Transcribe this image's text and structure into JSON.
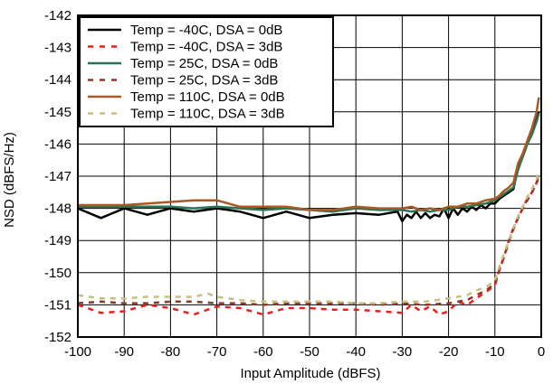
{
  "chart_data": {
    "type": "line",
    "xlabel": "Input Amplitude (dBFS)",
    "ylabel": "NSD (dBFS/Hz)",
    "xlim": [
      -100,
      0
    ],
    "ylim": [
      -152,
      -142
    ],
    "xticks": [
      "-100",
      "-90",
      "-80",
      "-70",
      "-60",
      "-50",
      "-40",
      "-30",
      "-20",
      "-10",
      "0"
    ],
    "yticks": [
      "-142",
      "-143",
      "-144",
      "-145",
      "-146",
      "-147",
      "-148",
      "-149",
      "-150",
      "-151",
      "-152"
    ],
    "grid": true,
    "legend_position": "top-left",
    "series": [
      {
        "name": "Temp = -40C, DSA = 0dB",
        "color": "#000000",
        "dash": "solid",
        "points": [
          [
            -100,
            -148.0
          ],
          [
            -95,
            -148.3
          ],
          [
            -90,
            -148.0
          ],
          [
            -85,
            -148.2
          ],
          [
            -80,
            -148.0
          ],
          [
            -75,
            -148.1
          ],
          [
            -70,
            -148.0
          ],
          [
            -65,
            -148.1
          ],
          [
            -60,
            -148.3
          ],
          [
            -55,
            -148.1
          ],
          [
            -50,
            -148.3
          ],
          [
            -45,
            -148.2
          ],
          [
            -40,
            -148.15
          ],
          [
            -35,
            -148.2
          ],
          [
            -31,
            -148.1
          ],
          [
            -30,
            -148.4
          ],
          [
            -29,
            -148.2
          ],
          [
            -28,
            -148.3
          ],
          [
            -27,
            -148.1
          ],
          [
            -26,
            -148.3
          ],
          [
            -25,
            -148.15
          ],
          [
            -24,
            -148.3
          ],
          [
            -23,
            -148.2
          ],
          [
            -22,
            -148.25
          ],
          [
            -21,
            -148.0
          ],
          [
            -20,
            -148.3
          ],
          [
            -19,
            -148.0
          ],
          [
            -18,
            -148.2
          ],
          [
            -17,
            -148.0
          ],
          [
            -16,
            -148.1
          ],
          [
            -15,
            -147.95
          ],
          [
            -14,
            -148.05
          ],
          [
            -13,
            -147.9
          ],
          [
            -12,
            -148.0
          ],
          [
            -11,
            -147.85
          ],
          [
            -10,
            -147.85
          ],
          [
            -9,
            -147.7
          ],
          [
            -8,
            -147.6
          ],
          [
            -7,
            -147.5
          ],
          [
            -6,
            -147.4
          ],
          [
            -5,
            -146.7
          ],
          [
            -4,
            -146.4
          ],
          [
            -3,
            -146.0
          ],
          [
            -2,
            -145.6
          ],
          [
            -1,
            -145.2
          ],
          [
            -0.5,
            -145.0
          ]
        ]
      },
      {
        "name": "Temp = -40C, DSA = 3dB",
        "color": "#ee1c1c",
        "dash": "dashed",
        "points": [
          [
            -100,
            -151.0
          ],
          [
            -95,
            -151.25
          ],
          [
            -90,
            -151.2
          ],
          [
            -85,
            -151.0
          ],
          [
            -80,
            -151.1
          ],
          [
            -75,
            -151.3
          ],
          [
            -70,
            -151.05
          ],
          [
            -65,
            -151.1
          ],
          [
            -60,
            -151.3
          ],
          [
            -55,
            -151.1
          ],
          [
            -50,
            -151.1
          ],
          [
            -45,
            -151.15
          ],
          [
            -40,
            -151.15
          ],
          [
            -35,
            -151.2
          ],
          [
            -30,
            -151.25
          ],
          [
            -28,
            -151.0
          ],
          [
            -26,
            -151.2
          ],
          [
            -24,
            -151.05
          ],
          [
            -22,
            -151.3
          ],
          [
            -20,
            -151.2
          ],
          [
            -18,
            -150.9
          ],
          [
            -16,
            -151.0
          ],
          [
            -14,
            -150.8
          ],
          [
            -12,
            -150.6
          ],
          [
            -10,
            -150.4
          ],
          [
            -9,
            -149.9
          ],
          [
            -8,
            -149.5
          ],
          [
            -7,
            -149.0
          ],
          [
            -6,
            -148.6
          ],
          [
            -5,
            -148.3
          ],
          [
            -4,
            -148.0
          ],
          [
            -3,
            -147.7
          ],
          [
            -2,
            -147.5
          ],
          [
            -1,
            -147.2
          ],
          [
            -0.5,
            -147.05
          ]
        ]
      },
      {
        "name": "Temp = 25C, DSA = 0dB",
        "color": "#2a7356",
        "dash": "solid",
        "points": [
          [
            -100,
            -147.95
          ],
          [
            -95,
            -147.95
          ],
          [
            -90,
            -147.95
          ],
          [
            -85,
            -147.95
          ],
          [
            -80,
            -147.95
          ],
          [
            -75,
            -148.0
          ],
          [
            -70,
            -147.95
          ],
          [
            -65,
            -148.0
          ],
          [
            -60,
            -148.05
          ],
          [
            -55,
            -148.0
          ],
          [
            -50,
            -148.05
          ],
          [
            -45,
            -148.1
          ],
          [
            -40,
            -148.0
          ],
          [
            -35,
            -148.05
          ],
          [
            -30,
            -148.05
          ],
          [
            -28,
            -148.1
          ],
          [
            -26,
            -148.05
          ],
          [
            -24,
            -148.1
          ],
          [
            -22,
            -148.05
          ],
          [
            -20,
            -148.05
          ],
          [
            -18,
            -147.95
          ],
          [
            -16,
            -147.95
          ],
          [
            -14,
            -147.9
          ],
          [
            -12,
            -147.85
          ],
          [
            -10,
            -147.75
          ],
          [
            -9,
            -147.65
          ],
          [
            -8,
            -147.55
          ],
          [
            -7,
            -147.45
          ],
          [
            -6,
            -147.35
          ],
          [
            -5,
            -146.8
          ],
          [
            -4,
            -146.4
          ],
          [
            -3,
            -146.0
          ],
          [
            -2,
            -145.7
          ],
          [
            -1,
            -145.3
          ],
          [
            -0.5,
            -145.05
          ]
        ]
      },
      {
        "name": "Temp = 25C, DSA = 3dB",
        "color": "#8a3a2a",
        "dash": "dashed",
        "points": [
          [
            -100,
            -150.95
          ],
          [
            -95,
            -150.9
          ],
          [
            -90,
            -150.95
          ],
          [
            -85,
            -150.95
          ],
          [
            -80,
            -150.9
          ],
          [
            -75,
            -150.9
          ],
          [
            -70,
            -150.95
          ],
          [
            -65,
            -150.95
          ],
          [
            -60,
            -151.0
          ],
          [
            -55,
            -150.95
          ],
          [
            -50,
            -150.95
          ],
          [
            -45,
            -150.95
          ],
          [
            -40,
            -150.95
          ],
          [
            -35,
            -151.0
          ],
          [
            -30,
            -150.95
          ],
          [
            -25,
            -151.0
          ],
          [
            -20,
            -150.95
          ],
          [
            -18,
            -150.9
          ],
          [
            -16,
            -150.85
          ],
          [
            -14,
            -150.7
          ],
          [
            -12,
            -150.55
          ],
          [
            -10,
            -150.35
          ],
          [
            -9,
            -149.9
          ],
          [
            -8,
            -149.5
          ],
          [
            -7,
            -149.05
          ],
          [
            -6,
            -148.65
          ],
          [
            -5,
            -148.3
          ],
          [
            -4,
            -148.0
          ],
          [
            -3,
            -147.75
          ],
          [
            -2,
            -147.5
          ],
          [
            -1,
            -147.2
          ],
          [
            -0.5,
            -146.95
          ]
        ]
      },
      {
        "name": "Temp = 110C, DSA = 0dB",
        "color": "#a85a22",
        "dash": "solid",
        "points": [
          [
            -100,
            -147.9
          ],
          [
            -95,
            -147.9
          ],
          [
            -90,
            -147.9
          ],
          [
            -85,
            -147.85
          ],
          [
            -80,
            -147.8
          ],
          [
            -75,
            -147.75
          ],
          [
            -70,
            -147.75
          ],
          [
            -65,
            -147.95
          ],
          [
            -60,
            -147.95
          ],
          [
            -55,
            -147.95
          ],
          [
            -50,
            -148.05
          ],
          [
            -45,
            -148.05
          ],
          [
            -40,
            -147.95
          ],
          [
            -35,
            -148.0
          ],
          [
            -30,
            -148.0
          ],
          [
            -28,
            -147.95
          ],
          [
            -26,
            -148.05
          ],
          [
            -24,
            -148.0
          ],
          [
            -22,
            -148.05
          ],
          [
            -20,
            -147.95
          ],
          [
            -18,
            -147.95
          ],
          [
            -16,
            -147.85
          ],
          [
            -14,
            -147.85
          ],
          [
            -12,
            -147.75
          ],
          [
            -10,
            -147.7
          ],
          [
            -9,
            -147.6
          ],
          [
            -8,
            -147.45
          ],
          [
            -7,
            -147.35
          ],
          [
            -6,
            -147.2
          ],
          [
            -5,
            -146.6
          ],
          [
            -4,
            -146.3
          ],
          [
            -3,
            -145.9
          ],
          [
            -2,
            -145.5
          ],
          [
            -1,
            -145.0
          ],
          [
            -0.5,
            -144.55
          ]
        ]
      },
      {
        "name": "Temp = 110C, DSA = 3dB",
        "color": "#c6bf80",
        "dash": "dashed",
        "points": [
          [
            -100,
            -150.7
          ],
          [
            -95,
            -150.8
          ],
          [
            -90,
            -150.8
          ],
          [
            -85,
            -150.75
          ],
          [
            -80,
            -150.75
          ],
          [
            -75,
            -150.75
          ],
          [
            -72,
            -150.65
          ],
          [
            -70,
            -150.75
          ],
          [
            -65,
            -150.85
          ],
          [
            -60,
            -150.9
          ],
          [
            -55,
            -150.9
          ],
          [
            -50,
            -150.9
          ],
          [
            -45,
            -150.9
          ],
          [
            -40,
            -150.95
          ],
          [
            -35,
            -150.95
          ],
          [
            -30,
            -150.9
          ],
          [
            -25,
            -150.9
          ],
          [
            -20,
            -150.8
          ],
          [
            -18,
            -150.75
          ],
          [
            -16,
            -150.7
          ],
          [
            -14,
            -150.55
          ],
          [
            -12,
            -150.45
          ],
          [
            -10,
            -150.25
          ],
          [
            -9,
            -149.8
          ],
          [
            -8,
            -149.4
          ],
          [
            -7,
            -149.0
          ],
          [
            -6,
            -148.6
          ],
          [
            -5,
            -148.25
          ],
          [
            -4,
            -147.95
          ],
          [
            -3,
            -147.65
          ],
          [
            -2,
            -147.4
          ],
          [
            -1,
            -147.1
          ],
          [
            -0.5,
            -146.8
          ]
        ]
      }
    ]
  }
}
